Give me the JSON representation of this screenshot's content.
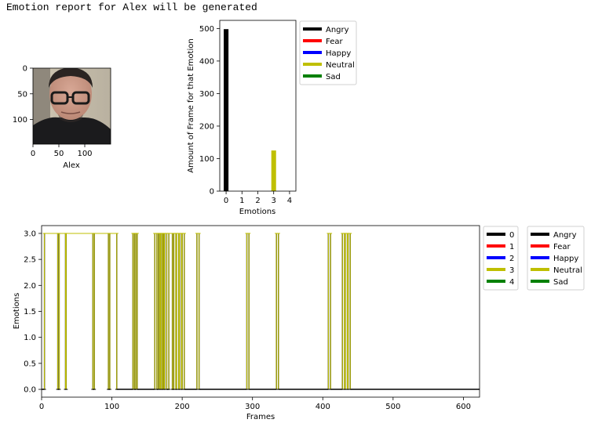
{
  "header": {
    "title": "Emotion report for Alex will be generated"
  },
  "face_image": {
    "xlabel": "Alex",
    "x_ticks": [
      "0",
      "50",
      "100"
    ],
    "y_ticks": [
      "0",
      "50",
      "100"
    ]
  },
  "emotion_labels": [
    "Angry",
    "Fear",
    "Happy",
    "Neutral",
    "Sad"
  ],
  "colors": {
    "Angry": "#000000",
    "Fear": "#ff0000",
    "Happy": "#0000ff",
    "Neutral": "#bfbf00",
    "Sad": "#008000"
  },
  "chart_data": [
    {
      "type": "bar",
      "categories": [
        0,
        1,
        2,
        3,
        4
      ],
      "values": [
        498,
        0,
        0,
        125,
        0
      ],
      "bar_colors": [
        "#000000",
        "#ff0000",
        "#0000ff",
        "#bfbf00",
        "#008000"
      ],
      "xlabel": "Emotions",
      "ylabel": "Amount of Frame for that Emotion",
      "xlim": [
        -0.4,
        4.4
      ],
      "ylim": [
        0,
        525
      ],
      "x_ticks": [
        0,
        1,
        2,
        3,
        4
      ],
      "y_ticks": [
        0,
        100,
        200,
        300,
        400,
        500
      ],
      "grid": false,
      "legend": {
        "placement": "outside-right-top",
        "entries": [
          "Angry",
          "Fear",
          "Happy",
          "Neutral",
          "Sad"
        ]
      }
    },
    {
      "type": "line",
      "xlabel": "Frames",
      "ylabel": "Emotions",
      "xlim": [
        0,
        623
      ],
      "ylim": [
        -0.15,
        3.15
      ],
      "x_ticks": [
        0,
        100,
        200,
        300,
        400,
        500,
        600
      ],
      "y_ticks": [
        0.0,
        0.5,
        1.0,
        1.5,
        2.0,
        2.5,
        3.0
      ],
      "y_tick_labels": [
        "0.0",
        "0.5",
        "1.0",
        "1.5",
        "2.0",
        "2.5",
        "3.0"
      ],
      "grid": false,
      "total_frames": 623,
      "neutral_segments": [
        [
          4,
          23
        ],
        [
          25,
          34
        ],
        [
          35,
          73
        ],
        [
          75,
          95
        ],
        [
          97,
          107
        ],
        [
          130,
          132
        ],
        [
          134,
          136
        ],
        [
          161,
          164
        ],
        [
          166,
          168
        ],
        [
          169,
          171
        ],
        [
          172,
          174
        ],
        [
          175,
          178
        ],
        [
          181,
          186
        ],
        [
          188,
          191
        ],
        [
          192,
          195
        ],
        [
          196,
          199
        ],
        [
          200,
          203
        ],
        [
          221,
          224
        ],
        [
          292,
          295
        ],
        [
          334,
          337
        ],
        [
          408,
          411
        ],
        [
          428,
          431
        ],
        [
          432,
          435
        ],
        [
          436,
          439
        ]
      ],
      "series": [
        {
          "name": "0",
          "value": 0,
          "color": "#000000"
        },
        {
          "name": "1",
          "value": 1,
          "color": "#ff0000"
        },
        {
          "name": "2",
          "value": 2,
          "color": "#0000ff"
        },
        {
          "name": "3",
          "value": 3,
          "color": "#bfbf00"
        },
        {
          "name": "4",
          "value": 4,
          "color": "#008000"
        }
      ],
      "legend": {
        "placement": "outside-right-top",
        "entries": [
          "0",
          "1",
          "2",
          "3",
          "4"
        ]
      },
      "legend2": {
        "placement": "outside-right-top",
        "entries": [
          "Angry",
          "Fear",
          "Happy",
          "Neutral",
          "Sad"
        ]
      }
    }
  ]
}
